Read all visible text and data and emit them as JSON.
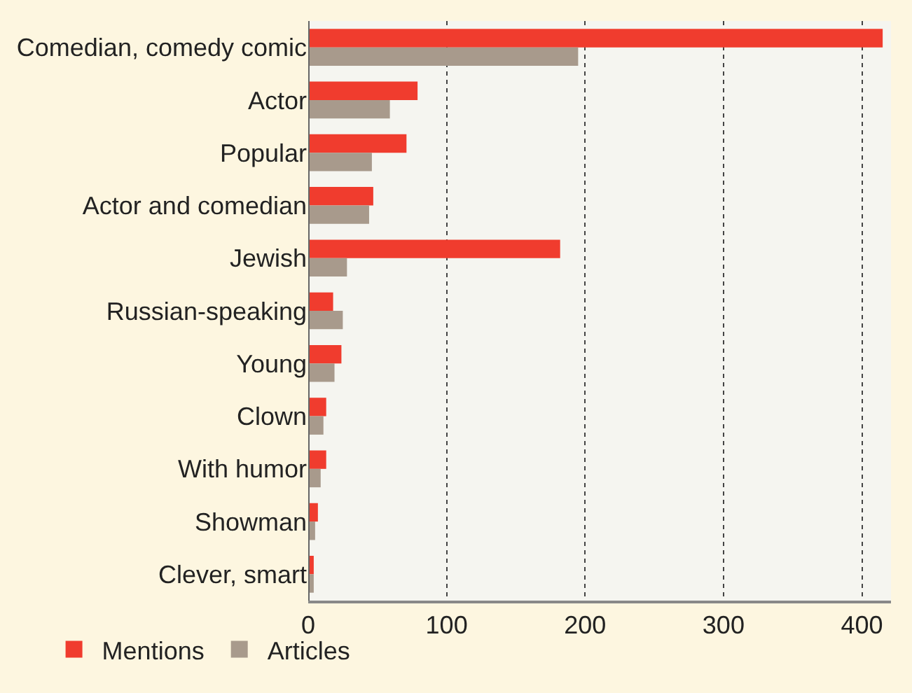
{
  "chart_data": {
    "type": "bar",
    "orientation": "horizontal",
    "categories": [
      "Comedian, comedy comic",
      "Actor",
      "Popular",
      "Actor and comedian",
      "Jewish",
      "Russian-speaking",
      "Young",
      "Clown",
      "With humor",
      "Showman",
      "Clever, smart"
    ],
    "series": [
      {
        "name": "Mentions",
        "color": "#f03c2e",
        "values": [
          415,
          79,
          71,
          47,
          182,
          18,
          24,
          13,
          13,
          7,
          4
        ]
      },
      {
        "name": "Articles",
        "color": "#a89a8c",
        "values": [
          195,
          59,
          46,
          44,
          28,
          25,
          19,
          11,
          9,
          5,
          4
        ]
      }
    ],
    "xlim": [
      0,
      421
    ],
    "xticks": [
      0,
      100,
      200,
      300,
      400
    ],
    "grid": "x",
    "legend": "bottom left"
  }
}
